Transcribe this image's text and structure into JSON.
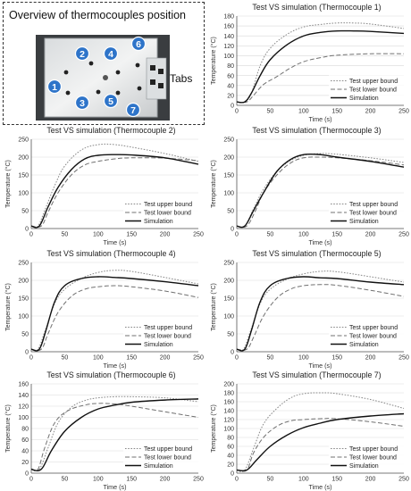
{
  "overview": {
    "title": "Overview of thermocouples position",
    "tabs_label": "Tabs",
    "markers": [
      "1",
      "2",
      "3",
      "4",
      "5",
      "6",
      "7"
    ],
    "marker_color": "#2e74c9"
  },
  "chart_data": [
    {
      "type": "line",
      "title": "Test VS simulation (Thermocouple 1)",
      "xlabel": "Time (s)",
      "ylabel": "Temperature (°C)",
      "xlim": [
        0,
        250
      ],
      "ylim": [
        0,
        180
      ],
      "xticks": [
        0,
        50,
        100,
        150,
        200,
        250
      ],
      "yticks": [
        0,
        20,
        40,
        60,
        80,
        100,
        120,
        140,
        160,
        180
      ],
      "legend_position": "bottom-right",
      "series": [
        {
          "name": "Test upper bound",
          "style": "dotted",
          "x": [
            0,
            12,
            22,
            35,
            50,
            75,
            100,
            125,
            150,
            175,
            200,
            250
          ],
          "y": [
            7,
            7,
            25,
            80,
            115,
            143,
            158,
            163,
            166,
            166,
            164,
            155
          ]
        },
        {
          "name": "Test lower bound",
          "style": "dashed",
          "x": [
            0,
            15,
            25,
            40,
            60,
            80,
            100,
            125,
            150,
            200,
            250
          ],
          "y": [
            7,
            7,
            20,
            42,
            58,
            75,
            88,
            96,
            101,
            104,
            104
          ]
        },
        {
          "name": "Simulation",
          "style": "solid",
          "x": [
            0,
            12,
            22,
            35,
            50,
            75,
            100,
            125,
            150,
            175,
            200,
            250
          ],
          "y": [
            7,
            7,
            25,
            60,
            92,
            122,
            140,
            147,
            150,
            150,
            149,
            145
          ]
        }
      ]
    },
    {
      "type": "line",
      "title": "Test VS simulation (Thermocouple 2)",
      "xlabel": "Time (s)",
      "ylabel": "Temperature (°C)",
      "xlim": [
        0,
        250
      ],
      "ylim": [
        0,
        250
      ],
      "xticks": [
        0,
        50,
        100,
        150,
        200,
        250
      ],
      "yticks": [
        0,
        50,
        100,
        150,
        200,
        250
      ],
      "legend_position": "bottom-right",
      "series": [
        {
          "name": "Test upper bound",
          "style": "dotted",
          "x": [
            0,
            10,
            20,
            35,
            50,
            75,
            100,
            125,
            150,
            200,
            250
          ],
          "y": [
            7,
            7,
            50,
            120,
            175,
            220,
            235,
            235,
            228,
            210,
            188
          ]
        },
        {
          "name": "Test lower bound",
          "style": "dashed",
          "x": [
            0,
            15,
            25,
            40,
            60,
            80,
            100,
            125,
            150,
            200,
            250
          ],
          "y": [
            7,
            7,
            45,
            100,
            150,
            178,
            188,
            195,
            198,
            197,
            190
          ]
        },
        {
          "name": "Simulation",
          "style": "solid",
          "x": [
            0,
            12,
            25,
            40,
            60,
            80,
            100,
            125,
            150,
            200,
            250
          ],
          "y": [
            7,
            7,
            60,
            115,
            165,
            195,
            205,
            207,
            206,
            198,
            180
          ]
        }
      ]
    },
    {
      "type": "line",
      "title": "Test VS simulation (Thermocouple 3)",
      "xlabel": "Time (s)",
      "ylabel": "Temperature (°C)",
      "xlim": [
        0,
        250
      ],
      "ylim": [
        0,
        250
      ],
      "xticks": [
        0,
        50,
        100,
        150,
        200,
        250
      ],
      "yticks": [
        0,
        50,
        100,
        150,
        200,
        250
      ],
      "legend_position": "bottom-right",
      "series": [
        {
          "name": "Test upper bound",
          "style": "dotted",
          "x": [
            0,
            12,
            25,
            40,
            60,
            80,
            100,
            125,
            150,
            200,
            250
          ],
          "y": [
            7,
            7,
            55,
            110,
            160,
            190,
            205,
            210,
            208,
            198,
            185
          ]
        },
        {
          "name": "Test lower bound",
          "style": "dashed",
          "x": [
            0,
            15,
            28,
            40,
            60,
            80,
            100,
            125,
            150,
            200,
            250
          ],
          "y": [
            7,
            7,
            50,
            100,
            150,
            183,
            198,
            200,
            198,
            190,
            178
          ]
        },
        {
          "name": "Simulation",
          "style": "solid",
          "x": [
            0,
            12,
            25,
            40,
            60,
            80,
            100,
            125,
            150,
            200,
            250
          ],
          "y": [
            7,
            7,
            50,
            100,
            160,
            193,
            207,
            207,
            200,
            188,
            172
          ]
        }
      ]
    },
    {
      "type": "line",
      "title": "Test VS simulation (Thermocouple 4)",
      "xlabel": "Time (s)",
      "ylabel": "Temperature (°C)",
      "xlim": [
        0,
        250
      ],
      "ylim": [
        0,
        250
      ],
      "xticks": [
        0,
        50,
        100,
        150,
        200,
        250
      ],
      "yticks": [
        0,
        50,
        100,
        150,
        200,
        250
      ],
      "legend_position": "bottom-right",
      "series": [
        {
          "name": "Test upper bound",
          "style": "dotted",
          "x": [
            0,
            10,
            20,
            35,
            50,
            75,
            100,
            125,
            150,
            200,
            250
          ],
          "y": [
            7,
            7,
            55,
            135,
            175,
            205,
            222,
            228,
            225,
            208,
            190
          ]
        },
        {
          "name": "Test lower bound",
          "style": "dashed",
          "x": [
            0,
            15,
            25,
            40,
            60,
            80,
            100,
            125,
            150,
            200,
            250
          ],
          "y": [
            7,
            7,
            50,
            110,
            155,
            175,
            182,
            185,
            182,
            170,
            152
          ]
        },
        {
          "name": "Simulation",
          "style": "solid",
          "x": [
            0,
            12,
            22,
            35,
            50,
            75,
            100,
            125,
            150,
            200,
            250
          ],
          "y": [
            7,
            7,
            60,
            140,
            185,
            205,
            210,
            208,
            205,
            196,
            185
          ]
        }
      ]
    },
    {
      "type": "line",
      "title": "Test VS simulation (Thermocouple 5)",
      "xlabel": "Time (s)",
      "ylabel": "Temperature (°C)",
      "xlim": [
        0,
        250
      ],
      "ylim": [
        0,
        250
      ],
      "xticks": [
        0,
        50,
        100,
        150,
        200,
        250
      ],
      "yticks": [
        0,
        50,
        100,
        150,
        200,
        250
      ],
      "legend_position": "bottom-right",
      "series": [
        {
          "name": "Test upper bound",
          "style": "dotted",
          "x": [
            0,
            10,
            20,
            35,
            50,
            75,
            100,
            125,
            150,
            200,
            250
          ],
          "y": [
            7,
            7,
            55,
            135,
            175,
            203,
            218,
            225,
            224,
            210,
            195
          ]
        },
        {
          "name": "Test lower bound",
          "style": "dashed",
          "x": [
            0,
            15,
            25,
            40,
            60,
            80,
            100,
            125,
            150,
            200,
            250
          ],
          "y": [
            7,
            7,
            40,
            100,
            150,
            175,
            185,
            188,
            186,
            172,
            155
          ]
        },
        {
          "name": "Simulation",
          "style": "solid",
          "x": [
            0,
            12,
            22,
            35,
            50,
            75,
            100,
            125,
            150,
            200,
            250
          ],
          "y": [
            7,
            7,
            60,
            140,
            185,
            205,
            210,
            207,
            205,
            195,
            188
          ]
        }
      ]
    },
    {
      "type": "line",
      "title": "Test VS simulation (Thermocouple 6)",
      "xlabel": "Time (s)",
      "ylabel": "Temperature (°C)",
      "xlim": [
        0,
        250
      ],
      "ylim": [
        0,
        160
      ],
      "xticks": [
        0,
        50,
        100,
        150,
        200,
        250
      ],
      "yticks": [
        0,
        20,
        40,
        60,
        80,
        100,
        120,
        140,
        160
      ],
      "legend_position": "bottom-right",
      "series": [
        {
          "name": "Test upper bound",
          "style": "dotted",
          "x": [
            0,
            12,
            25,
            40,
            60,
            80,
            100,
            125,
            150,
            200,
            250
          ],
          "y": [
            7,
            7,
            45,
            90,
            118,
            130,
            135,
            137,
            137,
            135,
            128
          ]
        },
        {
          "name": "Test lower bound",
          "style": "dashed",
          "x": [
            0,
            10,
            20,
            35,
            55,
            80,
            100,
            125,
            150,
            200,
            250
          ],
          "y": [
            7,
            7,
            45,
            90,
            112,
            122,
            125,
            124,
            120,
            110,
            100
          ]
        },
        {
          "name": "Simulation",
          "style": "solid",
          "x": [
            0,
            15,
            30,
            50,
            75,
            100,
            125,
            150,
            200,
            250
          ],
          "y": [
            7,
            7,
            40,
            75,
            100,
            115,
            122,
            127,
            131,
            133
          ]
        }
      ]
    },
    {
      "type": "line",
      "title": "Test VS simulation (Thermocouple 7)",
      "xlabel": "Time (s)",
      "ylabel": "Temperature (°C)",
      "xlim": [
        0,
        250
      ],
      "ylim": [
        0,
        200
      ],
      "xticks": [
        0,
        50,
        100,
        150,
        200,
        250
      ],
      "yticks": [
        0,
        20,
        40,
        60,
        80,
        100,
        120,
        140,
        160,
        180,
        200
      ],
      "legend_position": "bottom-right",
      "series": [
        {
          "name": "Test upper bound",
          "style": "dotted",
          "x": [
            0,
            12,
            25,
            40,
            60,
            80,
            100,
            125,
            150,
            200,
            250
          ],
          "y": [
            7,
            7,
            55,
            110,
            145,
            168,
            178,
            180,
            178,
            165,
            145
          ]
        },
        {
          "name": "Test lower bound",
          "style": "dashed",
          "x": [
            0,
            15,
            25,
            40,
            60,
            80,
            100,
            125,
            150,
            200,
            250
          ],
          "y": [
            7,
            7,
            45,
            80,
            105,
            117,
            120,
            122,
            122,
            115,
            105
          ]
        },
        {
          "name": "Simulation",
          "style": "solid",
          "x": [
            0,
            15,
            30,
            50,
            75,
            100,
            125,
            150,
            200,
            250
          ],
          "y": [
            7,
            7,
            30,
            60,
            85,
            102,
            112,
            120,
            128,
            133
          ]
        }
      ]
    }
  ]
}
